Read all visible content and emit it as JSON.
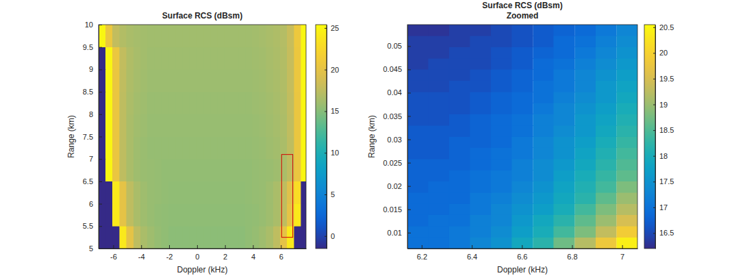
{
  "chart_data": [
    {
      "type": "heatmap",
      "title": "Surface RCS (dBsm)",
      "x_label": "Doppler (kHz)",
      "y_label": "Range (km)",
      "xlim": [
        -7.05,
        7.8
      ],
      "ylim": [
        5,
        10
      ],
      "xticks": [
        -6,
        -4,
        -2,
        0,
        2,
        4,
        6
      ],
      "yticks": [
        5,
        5.5,
        6,
        6.5,
        7,
        7.5,
        8,
        8.5,
        9,
        9.5,
        10
      ],
      "x": [
        -6.8,
        -6.3,
        -5.8,
        -5.3,
        -4.8,
        -4.3,
        -3.8,
        -3.3,
        -2.8,
        -2.3,
        -1.8,
        -1.3,
        -0.8,
        -0.3,
        0.2,
        0.7,
        1.2,
        1.7,
        2.2,
        2.7,
        3.2,
        3.7,
        4.2,
        4.7,
        5.2,
        5.7,
        6.2,
        6.7,
        7.2,
        7.7
      ],
      "y": [
        5.25,
        5.75,
        6.25,
        6.75,
        7.25,
        7.75,
        8.25,
        8.75,
        9.25,
        9.75
      ],
      "z": [
        [
          -1.5,
          -1.5,
          -1.5,
          24,
          20,
          17.5,
          16.5,
          16,
          15.6,
          15.4,
          15.2,
          15.2,
          15.2,
          15.2,
          15.2,
          15.2,
          15.2,
          15.2,
          15.2,
          15.2,
          15.2,
          15.4,
          15.6,
          16,
          16.5,
          17.5,
          20,
          24,
          -1.5,
          -1.5
        ],
        [
          -1.5,
          -1.5,
          24,
          20,
          17.5,
          16.5,
          16,
          15.7,
          15.5,
          15.4,
          15.3,
          15.3,
          15.3,
          15.3,
          15.3,
          15.3,
          15.3,
          15.3,
          15.3,
          15.3,
          15.3,
          15.4,
          15.5,
          15.7,
          16,
          16.5,
          17.5,
          20,
          24,
          -1.5
        ],
        [
          -1.5,
          -1.5,
          24,
          20,
          17.5,
          16.5,
          16,
          15.7,
          15.6,
          15.5,
          15.4,
          15.4,
          15.4,
          15.4,
          15.4,
          15.4,
          15.4,
          15.4,
          15.4,
          15.4,
          15.4,
          15.5,
          15.6,
          15.7,
          16,
          16.5,
          17.5,
          19.5,
          23,
          -1.5
        ],
        [
          -1.5,
          25,
          20.5,
          17.5,
          16.5,
          16,
          15.8,
          15.7,
          15.6,
          15.5,
          15.5,
          15.5,
          15.5,
          15.5,
          15.5,
          15.5,
          15.5,
          15.5,
          15.5,
          15.5,
          15.5,
          15.5,
          15.6,
          15.7,
          15.8,
          16,
          16.5,
          17.5,
          20.5,
          25
        ],
        [
          -1.5,
          25,
          20.5,
          17.5,
          16.5,
          16,
          15.8,
          15.6,
          15.6,
          15.6,
          15.6,
          15.6,
          15.6,
          15.6,
          15.6,
          15.6,
          15.6,
          15.6,
          15.6,
          15.6,
          15.6,
          15.6,
          15.7,
          15.8,
          16,
          16.2,
          16.5,
          17.5,
          20.5,
          25
        ],
        [
          -1.5,
          25,
          20.5,
          17.5,
          16.5,
          16.1,
          15.9,
          15.7,
          15.7,
          15.7,
          15.7,
          15.7,
          15.7,
          15.7,
          15.7,
          15.7,
          15.7,
          15.7,
          15.7,
          15.7,
          15.7,
          15.7,
          15.8,
          15.9,
          16.1,
          16.3,
          16.6,
          17.6,
          20.5,
          25
        ],
        [
          -1.5,
          25,
          20.5,
          17.5,
          16.6,
          16.2,
          16,
          15.8,
          15.8,
          15.8,
          15.8,
          15.8,
          15.8,
          15.8,
          15.8,
          15.8,
          15.8,
          15.8,
          15.8,
          15.8,
          15.8,
          15.8,
          15.9,
          16,
          16.2,
          16.4,
          16.7,
          17.7,
          20.5,
          25
        ],
        [
          -1.5,
          25,
          20.5,
          17.6,
          16.7,
          16.3,
          16.1,
          15.9,
          15.9,
          15.9,
          15.9,
          15.9,
          15.9,
          15.9,
          15.9,
          15.9,
          15.9,
          15.9,
          15.9,
          15.9,
          15.9,
          15.9,
          16,
          16.1,
          16.3,
          16.5,
          16.8,
          17.8,
          20.6,
          25
        ],
        [
          -1.5,
          25,
          20.6,
          17.7,
          16.8,
          16.4,
          16.2,
          16,
          16,
          16,
          16,
          16,
          16,
          16,
          16,
          16,
          16,
          16,
          16,
          16,
          16,
          16,
          16.1,
          16.2,
          16.4,
          16.6,
          16.9,
          17.9,
          20.7,
          25
        ],
        [
          25,
          20.6,
          17.7,
          16.9,
          16.5,
          16.3,
          16.2,
          16.1,
          16.1,
          16.1,
          16.1,
          16.1,
          16.1,
          16.1,
          16.1,
          16.1,
          16.1,
          16.1,
          16.1,
          16.1,
          16.1,
          16.1,
          16.2,
          16.3,
          16.5,
          16.7,
          17,
          18,
          20.8,
          25
        ]
      ],
      "colorbar_lim": [
        -1.5,
        25.4
      ],
      "colorbar_ticks": [
        0,
        5,
        10,
        15,
        20,
        25
      ],
      "zoom_box": {
        "x": [
          6.05,
          6.85
        ],
        "y": [
          5.25,
          7.1
        ]
      }
    },
    {
      "type": "heatmap",
      "title": "Surface RCS (dBsm)",
      "subtitle": "Zoomed",
      "x_label": "Doppler (kHz)",
      "y_label": "Range (km)",
      "xlim": [
        6.143,
        7.061
      ],
      "ylim": [
        0.0066,
        0.0546
      ],
      "xticks": [
        6.2,
        6.4,
        6.6,
        6.8,
        7
      ],
      "yticks": [
        0.01,
        0.015,
        0.02,
        0.025,
        0.03,
        0.035,
        0.04,
        0.045,
        0.05
      ],
      "x": [
        6.185,
        6.268,
        6.352,
        6.435,
        6.519,
        6.602,
        6.686,
        6.769,
        6.853,
        6.936,
        7.02
      ],
      "y": [
        0.0078,
        0.0102,
        0.0126,
        0.015,
        0.0174,
        0.0198,
        0.0222,
        0.0246,
        0.027,
        0.0294,
        0.0318,
        0.0342,
        0.0366,
        0.039,
        0.0414,
        0.0438,
        0.0462,
        0.0486,
        0.051,
        0.0534
      ],
      "z": [
        [
          17.0,
          17.0,
          17.1,
          17.3,
          17.5,
          17.9,
          18.2,
          18.7,
          19.2,
          19.8,
          20.4
        ],
        [
          17.0,
          17.0,
          17.1,
          17.2,
          17.4,
          17.7,
          18.0,
          18.4,
          18.8,
          19.3,
          19.9
        ],
        [
          16.9,
          17.0,
          17.0,
          17.2,
          17.3,
          17.6,
          17.9,
          18.2,
          18.6,
          19.0,
          19.5
        ],
        [
          16.9,
          16.9,
          17.0,
          17.1,
          17.3,
          17.5,
          17.7,
          18.0,
          18.4,
          18.8,
          19.2
        ],
        [
          16.9,
          16.9,
          16.9,
          17.1,
          17.2,
          17.4,
          17.6,
          17.9,
          18.2,
          18.6,
          19.0
        ],
        [
          16.8,
          16.9,
          16.9,
          17.0,
          17.1,
          17.3,
          17.5,
          17.8,
          18.1,
          18.4,
          18.8
        ],
        [
          16.8,
          16.8,
          16.9,
          17.0,
          17.1,
          17.2,
          17.4,
          17.7,
          18.0,
          18.3,
          18.6
        ],
        [
          16.8,
          16.8,
          16.8,
          16.9,
          17.0,
          17.2,
          17.4,
          17.6,
          17.9,
          18.2,
          18.5
        ],
        [
          16.7,
          16.7,
          16.8,
          16.9,
          17.0,
          17.1,
          17.3,
          17.5,
          17.8,
          18.1,
          18.4
        ],
        [
          16.7,
          16.7,
          16.8,
          16.8,
          16.9,
          17.1,
          17.3,
          17.5,
          17.7,
          18.0,
          18.3
        ],
        [
          16.7,
          16.7,
          16.7,
          16.8,
          16.9,
          17.0,
          17.2,
          17.4,
          17.6,
          17.9,
          18.2
        ],
        [
          16.6,
          16.6,
          16.7,
          16.8,
          16.9,
          17.0,
          17.2,
          17.3,
          17.6,
          17.8,
          18.1
        ],
        [
          16.6,
          16.6,
          16.6,
          16.7,
          16.8,
          16.9,
          17.1,
          17.3,
          17.5,
          17.7,
          18.0
        ],
        [
          16.6,
          16.6,
          16.6,
          16.7,
          16.8,
          16.9,
          17.0,
          17.2,
          17.4,
          17.6,
          17.9
        ],
        [
          16.5,
          16.5,
          16.6,
          16.6,
          16.7,
          16.8,
          17.0,
          17.1,
          17.3,
          17.6,
          17.8
        ],
        [
          16.5,
          16.5,
          16.5,
          16.6,
          16.7,
          16.8,
          16.9,
          17.1,
          17.3,
          17.5,
          17.7
        ],
        [
          16.4,
          16.5,
          16.5,
          16.5,
          16.6,
          16.7,
          16.9,
          17.0,
          17.2,
          17.4,
          17.6
        ],
        [
          16.4,
          16.4,
          16.5,
          16.5,
          16.6,
          16.7,
          16.8,
          16.9,
          17.1,
          17.3,
          17.5
        ],
        [
          16.4,
          16.4,
          16.4,
          16.5,
          16.5,
          16.6,
          16.7,
          16.9,
          17.0,
          17.2,
          17.4
        ],
        [
          16.3,
          16.3,
          16.4,
          16.4,
          16.5,
          16.6,
          16.7,
          16.8,
          16.9,
          17.1,
          17.3
        ]
      ],
      "colorbar_lim": [
        16.2,
        20.55
      ],
      "colorbar_ticks": [
        16.5,
        17,
        17.5,
        18,
        18.5,
        19,
        19.5,
        20,
        20.5
      ]
    }
  ]
}
